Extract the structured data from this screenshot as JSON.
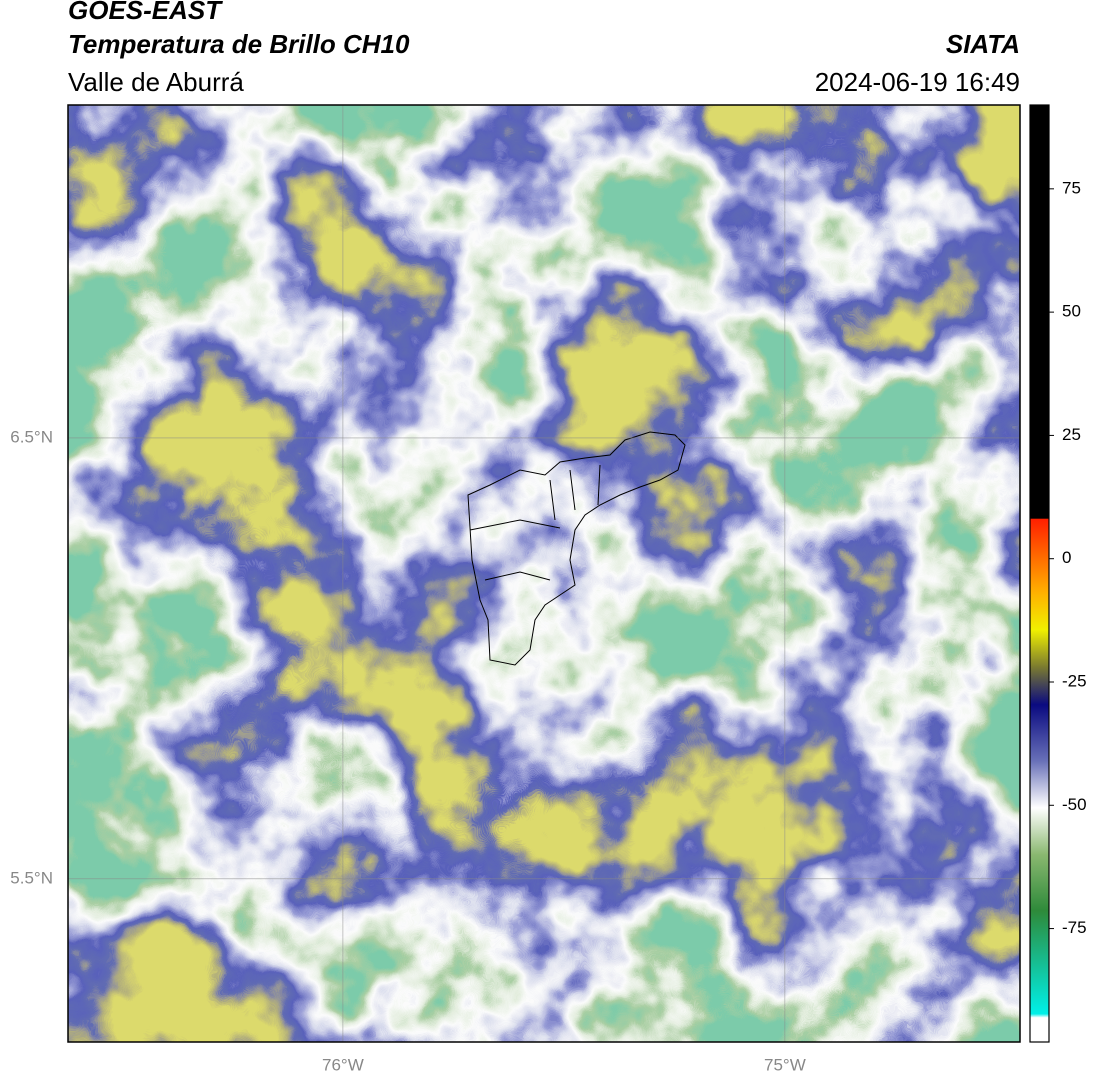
{
  "header": {
    "line1": "GOES-EAST",
    "line2": "Temperatura de Brillo CH10",
    "agency": "SIATA",
    "region": "Valle de Aburrá",
    "timestamp": "2024-06-19 16:49"
  },
  "map": {
    "xlim": [
      -76.622,
      -74.468
    ],
    "ylim": [
      5.13,
      7.255
    ],
    "xticks": [
      {
        "value": -76,
        "label": "76°W"
      },
      {
        "value": -75,
        "label": "75°W"
      }
    ],
    "yticks": [
      {
        "value": 6.5,
        "label": "6.5°N"
      },
      {
        "value": 5.5,
        "label": "5.5°N"
      }
    ],
    "grid": true
  },
  "colorbar": {
    "lim": [
      -98,
      92
    ],
    "ticks": [
      75,
      50,
      25,
      0,
      -25,
      -50,
      -75
    ]
  }
}
